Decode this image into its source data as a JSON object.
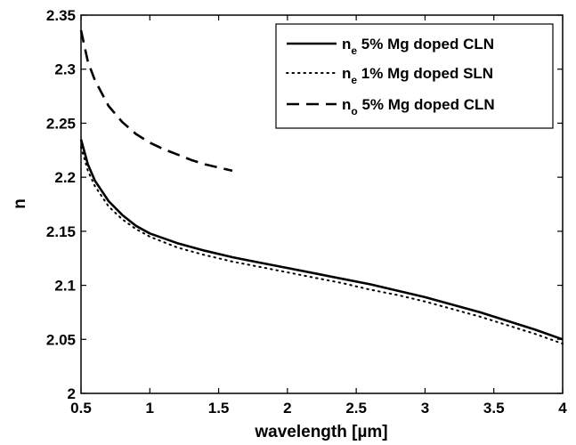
{
  "chart_data": {
    "type": "line",
    "xlabel": "wavelength [µm]",
    "ylabel": "n",
    "xlim": [
      0.5,
      4
    ],
    "ylim": [
      2,
      2.35
    ],
    "grid": false,
    "legend_position": "top-right",
    "x_ticks": [
      0.5,
      1,
      1.5,
      2,
      2.5,
      3,
      3.5,
      4
    ],
    "x_tick_labels": [
      "0.5",
      "1",
      "1.5",
      "2",
      "2.5",
      "3",
      "3.5",
      "4"
    ],
    "y_ticks": [
      2,
      2.05,
      2.1,
      2.15,
      2.2,
      2.25,
      2.3,
      2.35
    ],
    "y_tick_labels": [
      "2",
      "2.05",
      "2.1",
      "2.15",
      "2.2",
      "2.25",
      "2.3",
      "2.35"
    ],
    "series": [
      {
        "name": "n_e 5% Mg doped CLN",
        "legend": {
          "main": "n",
          "sub": "e",
          "rest": " 5% Mg doped CLN"
        },
        "style": "solid",
        "color": "#000000",
        "x": [
          0.5,
          0.55,
          0.6,
          0.7,
          0.8,
          0.9,
          1.0,
          1.2,
          1.4,
          1.6,
          1.8,
          2.0,
          2.2,
          2.4,
          2.6,
          2.8,
          3.0,
          3.2,
          3.4,
          3.6,
          3.8,
          4.0
        ],
        "y": [
          2.235,
          2.212,
          2.197,
          2.178,
          2.165,
          2.155,
          2.148,
          2.139,
          2.132,
          2.126,
          2.121,
          2.116,
          2.111,
          2.106,
          2.101,
          2.095,
          2.089,
          2.082,
          2.075,
          2.067,
          2.059,
          2.05
        ]
      },
      {
        "name": "n_e 1% Mg doped SLN",
        "legend": {
          "main": "n",
          "sub": "e",
          "rest": " 1% Mg doped SLN"
        },
        "style": "dotted",
        "color": "#000000",
        "x": [
          0.5,
          0.55,
          0.6,
          0.7,
          0.8,
          0.9,
          1.0,
          1.2,
          1.4,
          1.6,
          1.8,
          2.0,
          2.2,
          2.4,
          2.6,
          2.8,
          3.0,
          3.2,
          3.4,
          3.6,
          3.8,
          4.0
        ],
        "y": [
          2.228,
          2.206,
          2.192,
          2.173,
          2.161,
          2.152,
          2.145,
          2.135,
          2.128,
          2.122,
          2.117,
          2.112,
          2.107,
          2.102,
          2.096,
          2.091,
          2.085,
          2.078,
          2.071,
          2.063,
          2.055,
          2.046
        ]
      },
      {
        "name": "n_o 5% Mg doped CLN",
        "legend": {
          "main": "n",
          "sub": "o",
          "rest": " 5% Mg doped CLN"
        },
        "style": "dashed",
        "color": "#000000",
        "x": [
          0.5,
          0.55,
          0.6,
          0.7,
          0.8,
          0.9,
          1.0,
          1.1,
          1.2,
          1.3,
          1.4,
          1.5,
          1.6
        ],
        "y": [
          2.336,
          2.307,
          2.29,
          2.266,
          2.251,
          2.24,
          2.232,
          2.226,
          2.221,
          2.216,
          2.212,
          2.209,
          2.206
        ]
      }
    ]
  }
}
